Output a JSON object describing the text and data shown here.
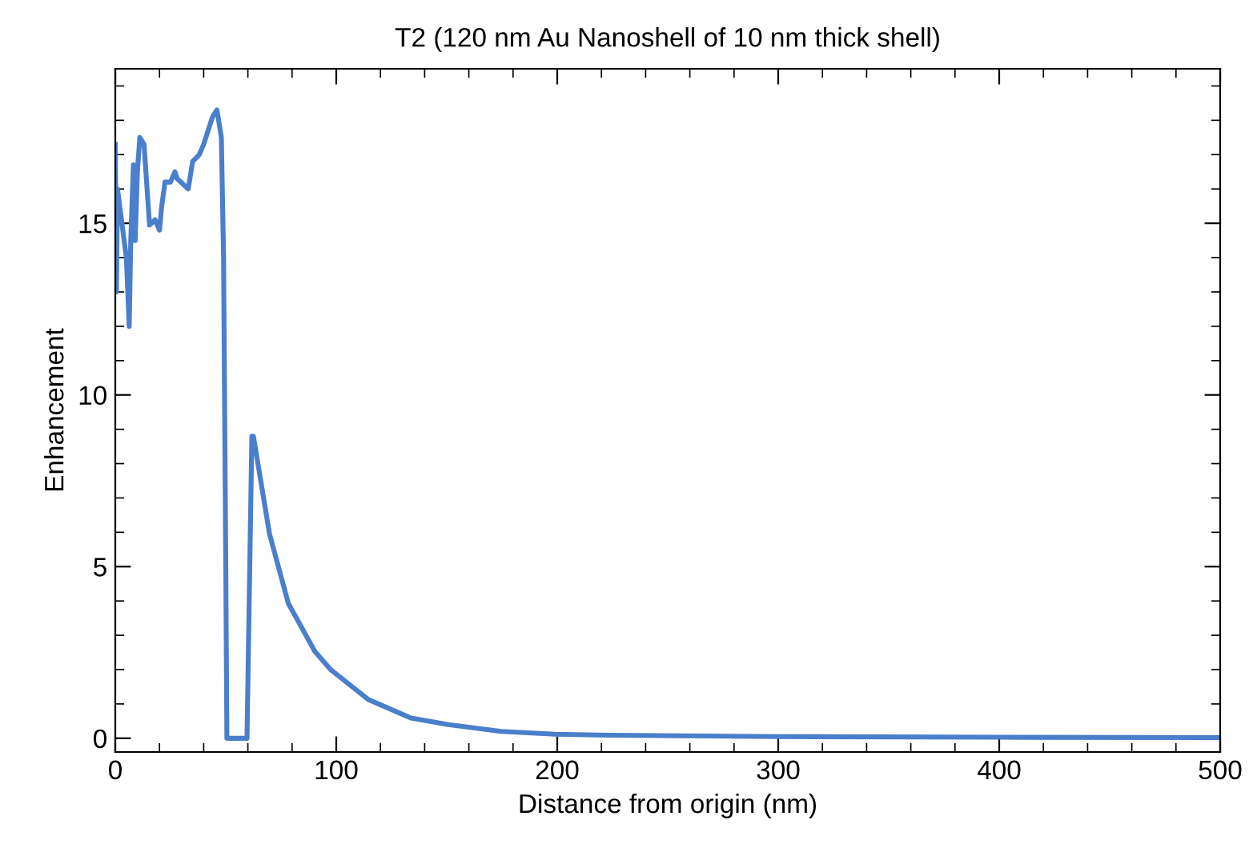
{
  "chart_data": {
    "type": "line",
    "title": "T2 (120 nm Au Nanoshell of 10 nm thick shell)",
    "xlabel": "Distance from origin (nm)",
    "ylabel": "Enhancement",
    "xlim": [
      0,
      500
    ],
    "ylim": [
      -0.4,
      19.5
    ],
    "xticks": [
      0,
      100,
      200,
      300,
      400,
      500
    ],
    "yticks": [
      0,
      5,
      10,
      15
    ],
    "grid": false,
    "legend": false,
    "series": [
      {
        "color": "#4a7fcc",
        "x": [
          0,
          0.5,
          1,
          3,
          5,
          6.3,
          7,
          8.2,
          9,
          10,
          11.1,
          13,
          15.5,
          18,
          20,
          21,
          22.5,
          25,
          27,
          28,
          33,
          35,
          38,
          40,
          44,
          46,
          48,
          49,
          50,
          50.5,
          59.6,
          61.8,
          62.5,
          69.8,
          78.3,
          90.3,
          97.6,
          114.5,
          133.8,
          150.7,
          174.6,
          199,
          223,
          300,
          400,
          500
        ],
        "values": [
          17.3,
          13,
          16,
          15,
          14,
          12.0,
          14.5,
          16.7,
          14.5,
          16.5,
          17.5,
          17.3,
          14.95,
          15.1,
          14.8,
          15.5,
          16.2,
          16.2,
          16.5,
          16.3,
          16.0,
          16.8,
          17,
          17.3,
          18.1,
          18.3,
          17.5,
          14,
          5,
          0,
          0,
          8.8,
          8.8,
          5.95,
          3.93,
          2.53,
          1.99,
          1.13,
          0.59,
          0.4,
          0.2,
          0.12,
          0.09,
          0.05,
          0.03,
          0.02
        ]
      }
    ]
  }
}
